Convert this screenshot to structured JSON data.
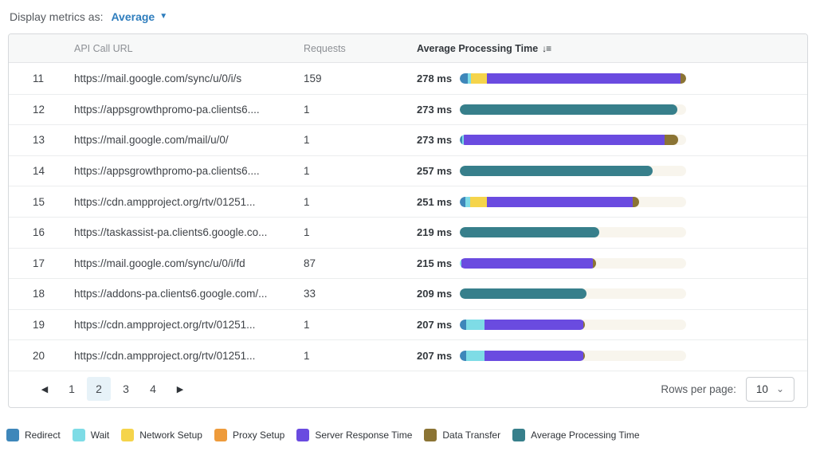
{
  "controls": {
    "display_metrics_label": "Display metrics as:",
    "display_metrics_value": "Average",
    "caret_down": "▼"
  },
  "table": {
    "columns": {
      "url": "API Call URL",
      "requests": "Requests",
      "apt": "Average Processing Time"
    },
    "sort_icon": "↓≡",
    "rows": [
      {
        "index": "11",
        "url": "https://mail.google.com/sync/u/0/i/s",
        "requests": "159",
        "time": "278 ms",
        "segments": [
          [
            "redirect",
            3.5
          ],
          [
            "wait",
            1.4
          ],
          [
            "network_setup",
            7.0
          ],
          [
            "server_response",
            85.6
          ],
          [
            "data_transfer",
            2.5
          ]
        ]
      },
      {
        "index": "12",
        "url": "https://appsgrowthpromo-pa.clients6....",
        "requests": "1",
        "time": "273 ms",
        "segments": [
          [
            "avg_processing",
            96.1
          ]
        ]
      },
      {
        "index": "13",
        "url": "https://mail.google.com/mail/u/0/",
        "requests": "1",
        "time": "273 ms",
        "segments": [
          [
            "redirect",
            1.1
          ],
          [
            "wait",
            0.7
          ],
          [
            "server_response",
            88.7
          ],
          [
            "data_transfer",
            6.0
          ]
        ]
      },
      {
        "index": "14",
        "url": "https://appsgrowthpromo-pa.clients6....",
        "requests": "1",
        "time": "257 ms",
        "segments": [
          [
            "avg_processing",
            85.2
          ]
        ]
      },
      {
        "index": "15",
        "url": "https://cdn.ampproject.org/rtv/01251...",
        "requests": "1",
        "time": "251 ms",
        "segments": [
          [
            "redirect",
            2.5
          ],
          [
            "wait",
            2.1
          ],
          [
            "network_setup",
            7.4
          ],
          [
            "server_response",
            64.4
          ],
          [
            "data_transfer",
            2.8
          ]
        ]
      },
      {
        "index": "16",
        "url": "https://taskassist-pa.clients6.google.co...",
        "requests": "1",
        "time": "219 ms",
        "segments": [
          [
            "avg_processing",
            61.6
          ]
        ]
      },
      {
        "index": "17",
        "url": "https://mail.google.com/sync/u/0/i/fd",
        "requests": "87",
        "time": "215 ms",
        "segments": [
          [
            "wait",
            0.7
          ],
          [
            "server_response",
            58.1
          ],
          [
            "data_transfer",
            1.4
          ]
        ]
      },
      {
        "index": "18",
        "url": "https://addons-pa.clients6.google.com/...",
        "requests": "33",
        "time": "209 ms",
        "segments": [
          [
            "avg_processing",
            56.0
          ]
        ]
      },
      {
        "index": "19",
        "url": "https://cdn.ampproject.org/rtv/01251...",
        "requests": "1",
        "time": "207 ms",
        "segments": [
          [
            "redirect",
            2.8
          ],
          [
            "wait",
            8.1
          ],
          [
            "server_response",
            43.7
          ],
          [
            "data_transfer",
            0.7
          ]
        ]
      },
      {
        "index": "20",
        "url": "https://cdn.ampproject.org/rtv/01251...",
        "requests": "1",
        "time": "207 ms",
        "segments": [
          [
            "redirect",
            2.8
          ],
          [
            "wait",
            8.1
          ],
          [
            "server_response",
            43.7
          ],
          [
            "data_transfer",
            0.7
          ]
        ]
      }
    ]
  },
  "pagination": {
    "prev_icon": "◀",
    "next_icon": "▶",
    "pages": [
      "1",
      "2",
      "3",
      "4"
    ],
    "active_page": "2",
    "rows_per_page_label": "Rows per page:",
    "rows_per_page_value": "10",
    "select_caret": "⌄"
  },
  "legend": [
    {
      "key": "redirect",
      "label": "Redirect",
      "color": "#3e87ba"
    },
    {
      "key": "wait",
      "label": "Wait",
      "color": "#7edce6"
    },
    {
      "key": "network_setup",
      "label": "Network Setup",
      "color": "#f5d44b"
    },
    {
      "key": "proxy_setup",
      "label": "Proxy Setup",
      "color": "#ee9b3b"
    },
    {
      "key": "server_response",
      "label": "Server Response Time",
      "color": "#6a4be0"
    },
    {
      "key": "data_transfer",
      "label": "Data Transfer",
      "color": "#8b7434"
    },
    {
      "key": "avg_processing",
      "label": "Average Processing Time",
      "color": "#377f8b"
    }
  ],
  "bar": {
    "track_color": "#f8f5ed",
    "max_percent": 100
  }
}
